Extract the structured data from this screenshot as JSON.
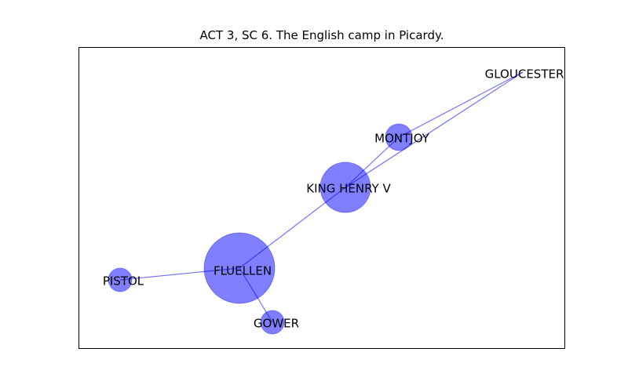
{
  "title": "ACT 3, SC 6. The English camp in Picardy.",
  "style": {
    "node_color": "#0000ff",
    "node_opacity": 0.5,
    "edge_color": "#0000ff",
    "edge_opacity": 0.55
  },
  "nodes": [
    {
      "id": "gloucester",
      "label": "GLOUCESTER"
    },
    {
      "id": "montjoy",
      "label": "MONTJOY"
    },
    {
      "id": "king_henry_v",
      "label": "KING HENRY V"
    },
    {
      "id": "fluellen",
      "label": "FLUELLEN"
    },
    {
      "id": "pistol",
      "label": "PISTOL"
    },
    {
      "id": "gower",
      "label": "GOWER"
    }
  ],
  "edges": [
    [
      "gloucester",
      "montjoy"
    ],
    [
      "gloucester",
      "king_henry_v"
    ],
    [
      "montjoy",
      "king_henry_v"
    ],
    [
      "king_henry_v",
      "fluellen"
    ],
    [
      "fluellen",
      "pistol"
    ],
    [
      "fluellen",
      "gower"
    ]
  ]
}
